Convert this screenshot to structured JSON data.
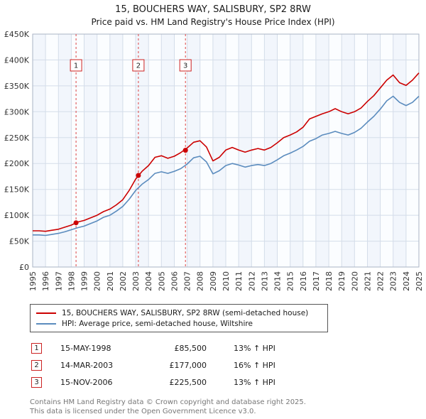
{
  "chart_data": {
    "type": "line",
    "title": "15, BOUCHERS WAY, SALISBURY, SP2 8RW",
    "subtitle": "Price paid vs. HM Land Registry's House Price Index (HPI)",
    "x_start": 1995,
    "x_end": 2025,
    "x_step": 0.5,
    "x_ticks": [
      1995,
      1996,
      1997,
      1998,
      1999,
      2000,
      2001,
      2002,
      2003,
      2004,
      2005,
      2006,
      2007,
      2008,
      2009,
      2010,
      2011,
      2012,
      2013,
      2014,
      2015,
      2016,
      2017,
      2018,
      2019,
      2020,
      2021,
      2022,
      2023,
      2024,
      2025
    ],
    "ylim": [
      0,
      450
    ],
    "y_tick_step": 50,
    "y_tick_labels": [
      "£0",
      "£50K",
      "£100K",
      "£150K",
      "£200K",
      "£250K",
      "£300K",
      "£350K",
      "£400K",
      "£450K"
    ],
    "y_unit": "GBP thousands",
    "grid": true,
    "legend_position": "bottom",
    "series": [
      {
        "name": "15, BOUCHERS WAY, SALISBURY, SP2 8RW (semi-detached house)",
        "color": "#cc0000",
        "values": [
          70,
          70,
          69,
          71,
          73,
          77,
          81,
          87,
          90,
          95,
          100,
          107,
          112,
          120,
          130,
          148,
          170,
          185,
          196,
          212,
          215,
          210,
          214,
          221,
          230,
          241,
          244,
          232,
          205,
          212,
          226,
          231,
          226,
          222,
          226,
          229,
          226,
          231,
          240,
          250,
          255,
          261,
          270,
          286,
          291,
          296,
          300,
          306,
          300,
          296,
          300,
          307,
          320,
          331,
          346,
          361,
          371,
          356,
          351,
          361,
          375
        ]
      },
      {
        "name": "HPI: Average price, semi-detached house, Wiltshire",
        "color": "#5b8cbe",
        "values": [
          62,
          62,
          61,
          63,
          65,
          68,
          72,
          76,
          79,
          84,
          89,
          96,
          100,
          108,
          117,
          131,
          148,
          160,
          169,
          181,
          184,
          181,
          185,
          190,
          199,
          211,
          214,
          203,
          180,
          186,
          196,
          200,
          197,
          193,
          196,
          198,
          196,
          200,
          207,
          215,
          220,
          226,
          233,
          243,
          248,
          255,
          258,
          262,
          258,
          255,
          260,
          268,
          280,
          291,
          305,
          321,
          330,
          318,
          312,
          318,
          330
        ]
      }
    ],
    "sales": [
      {
        "n": "1",
        "x": 1998.37,
        "y": 85.5,
        "date": "15-MAY-1998",
        "price": "£85,500",
        "hpi": "13% ↑ HPI"
      },
      {
        "n": "2",
        "x": 2003.21,
        "y": 177,
        "date": "14-MAR-2003",
        "price": "£177,000",
        "hpi": "16% ↑ HPI"
      },
      {
        "n": "3",
        "x": 2006.87,
        "y": 225.5,
        "date": "15-NOV-2006",
        "price": "£225,500",
        "hpi": "13% ↑ HPI"
      }
    ],
    "colors": {
      "accent_red": "#cc0000",
      "hpi_blue": "#5b8cbe",
      "sale_dash": "#dd4444",
      "grid": "#d4dde9"
    }
  },
  "footer": {
    "line1": "Contains HM Land Registry data © Crown copyright and database right 2025.",
    "line2": "This data is licensed under the Open Government Licence v3.0."
  }
}
